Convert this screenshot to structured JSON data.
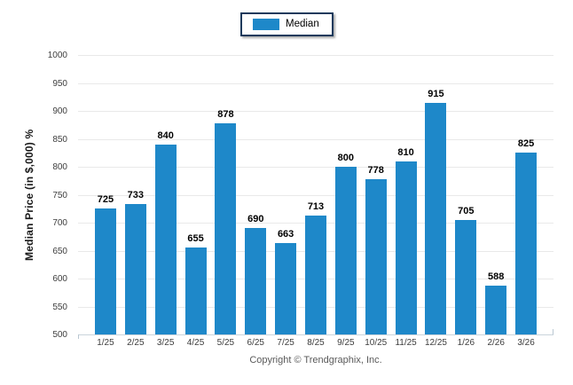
{
  "legend": {
    "label": "Median"
  },
  "footer": {
    "copyright": "Copyright © Trendgraphix, Inc."
  },
  "colors": {
    "bar": "#1e88c9",
    "grid_line": "#e9e9e9",
    "axis_line": "#c9d4dc",
    "tick_mark": "#b9c7d2",
    "legend_border": "#1b3a5c",
    "value_label": "#000000",
    "tick_label": "#3d3d3d",
    "footer_text": "#5a5a5a"
  },
  "chart_data": {
    "type": "bar",
    "categories": [
      "1/25",
      "2/25",
      "3/25",
      "4/25",
      "5/25",
      "6/25",
      "7/25",
      "8/25",
      "9/25",
      "10/25",
      "11/25",
      "12/25",
      "1/26",
      "2/26",
      "3/26"
    ],
    "values": [
      725,
      733,
      840,
      655,
      878,
      690,
      663,
      713,
      800,
      778,
      810,
      915,
      705,
      588,
      825
    ],
    "series": [
      {
        "name": "Median",
        "values": [
          725,
          733,
          840,
          655,
          878,
          690,
          663,
          713,
          800,
          778,
          810,
          915,
          705,
          588,
          825
        ]
      }
    ],
    "title": "",
    "xlabel": "",
    "ylabel": "Median Price (in $,000) %",
    "ylim": [
      500,
      1000
    ],
    "ytick_step": 50,
    "yticks": [
      500,
      550,
      600,
      650,
      700,
      750,
      800,
      850,
      900,
      950,
      1000
    ],
    "grid": true,
    "bar_value_labels": true,
    "legend_entries": [
      "Median"
    ],
    "legend_position": "top-center"
  }
}
